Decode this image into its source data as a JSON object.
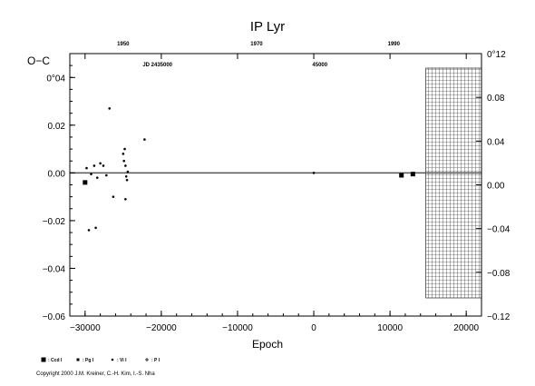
{
  "chart_data": {
    "type": "scatter",
    "title": "IP  Lyr",
    "ylabel": "O−C",
    "xlabel": "Epoch",
    "xlim": [
      -32000,
      22000
    ],
    "ylim": [
      -0.06,
      0.05
    ],
    "y2lim": [
      -0.12,
      0.12
    ],
    "x_ticks": [
      -30000,
      -20000,
      -10000,
      0,
      10000,
      20000
    ],
    "x_tick_labels": [
      "−30000",
      "−20000",
      "−10000",
      "0",
      "10000",
      "20000"
    ],
    "y_ticks": [
      -0.06,
      -0.04,
      -0.02,
      0.0,
      0.02,
      0.04
    ],
    "y_tick_labels": [
      "−0.06",
      "−0.04",
      "−0.02",
      "0.00",
      "0.02",
      "0°04"
    ],
    "y2_ticks": [
      -0.12,
      -0.08,
      -0.04,
      0.0,
      0.04,
      0.08,
      0.12
    ],
    "y2_tick_labels": [
      "−0.12",
      "−0.08",
      "−0.04",
      "0.00",
      "0.04",
      "0.08",
      "0°12"
    ],
    "top_year_labels": [
      {
        "x": -25000,
        "label": "1950"
      },
      {
        "x": -7500,
        "label": "1970"
      },
      {
        "x": 10500,
        "label": "1990"
      }
    ],
    "top_jd_labels": [
      {
        "x": -20500,
        "label": "JD 2435000"
      },
      {
        "x": 800,
        "label": "45000"
      }
    ],
    "hatched_region": {
      "x_from": 14700,
      "x_to": 22000
    },
    "legend": [
      {
        "marker": "square",
        "label": ": Ccd I"
      },
      {
        "marker": "small-square",
        "label": ": Pg I"
      },
      {
        "marker": "dot",
        "label": ": Vi I"
      },
      {
        "marker": "plus",
        "label": ": P I"
      }
    ],
    "series": [
      {
        "marker": "square",
        "points": [
          [
            -30000,
            -0.004
          ],
          [
            11500,
            -0.001
          ],
          [
            13000,
            -0.0005
          ]
        ]
      },
      {
        "marker": "dot",
        "points": [
          [
            -29800,
            0.002
          ],
          [
            -29500,
            -0.024
          ],
          [
            -29200,
            -0.0005
          ],
          [
            -28800,
            0.003
          ],
          [
            -28600,
            -0.023
          ],
          [
            -28400,
            -0.002
          ],
          [
            -28000,
            0.004
          ],
          [
            -27600,
            0.003
          ],
          [
            -27200,
            -0.001
          ],
          [
            -26800,
            0.027
          ],
          [
            -26300,
            -0.01
          ],
          [
            -25000,
            0.008
          ],
          [
            -24900,
            0.005
          ],
          [
            -24800,
            0.01
          ],
          [
            -24700,
            0.003
          ],
          [
            -24600,
            -0.0015
          ],
          [
            -24500,
            -0.003
          ],
          [
            -24700,
            -0.011
          ],
          [
            -24400,
            0.0005
          ],
          [
            -22200,
            0.014
          ],
          [
            0,
            0.0
          ]
        ]
      }
    ]
  },
  "copyright": "Copyright 2000 J.M. Kreiner, C.-H. Kim, I.-S. Nha"
}
